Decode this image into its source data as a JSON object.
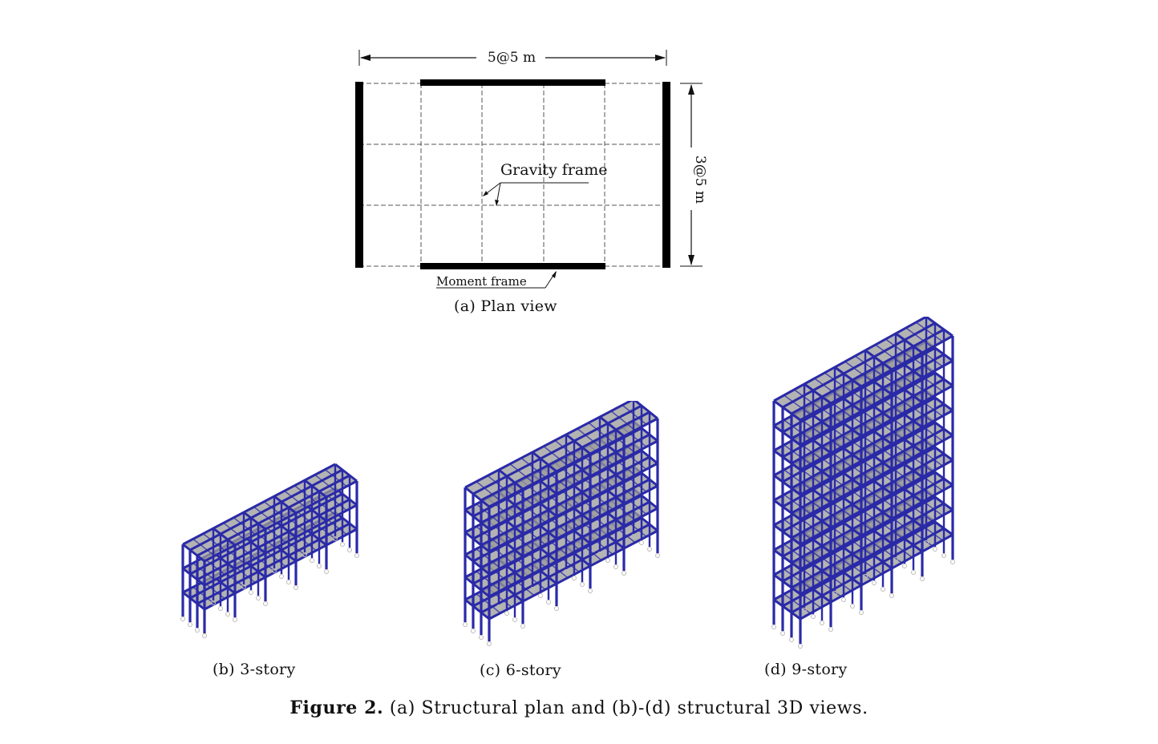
{
  "plan": {
    "width_dim": "5@5 m",
    "height_dim": "3@5 m",
    "gravity_label": "Gravity frame",
    "moment_label": "Moment frame",
    "caption": "(a) Plan view"
  },
  "views": [
    {
      "caption": "(b) 3-story",
      "stories": 3
    },
    {
      "caption": "(c) 6-story",
      "stories": 6
    },
    {
      "caption": "(d) 9-story",
      "stories": 9
    }
  ],
  "figure": {
    "label": "Figure 2.",
    "text": " (a) Structural plan and (b)-(d) structural 3D views."
  },
  "colors": {
    "frame": "#2a2aa8",
    "slab": "#9a9a9a",
    "moment_frame": "#000000",
    "gravity_frame": "#555555"
  }
}
